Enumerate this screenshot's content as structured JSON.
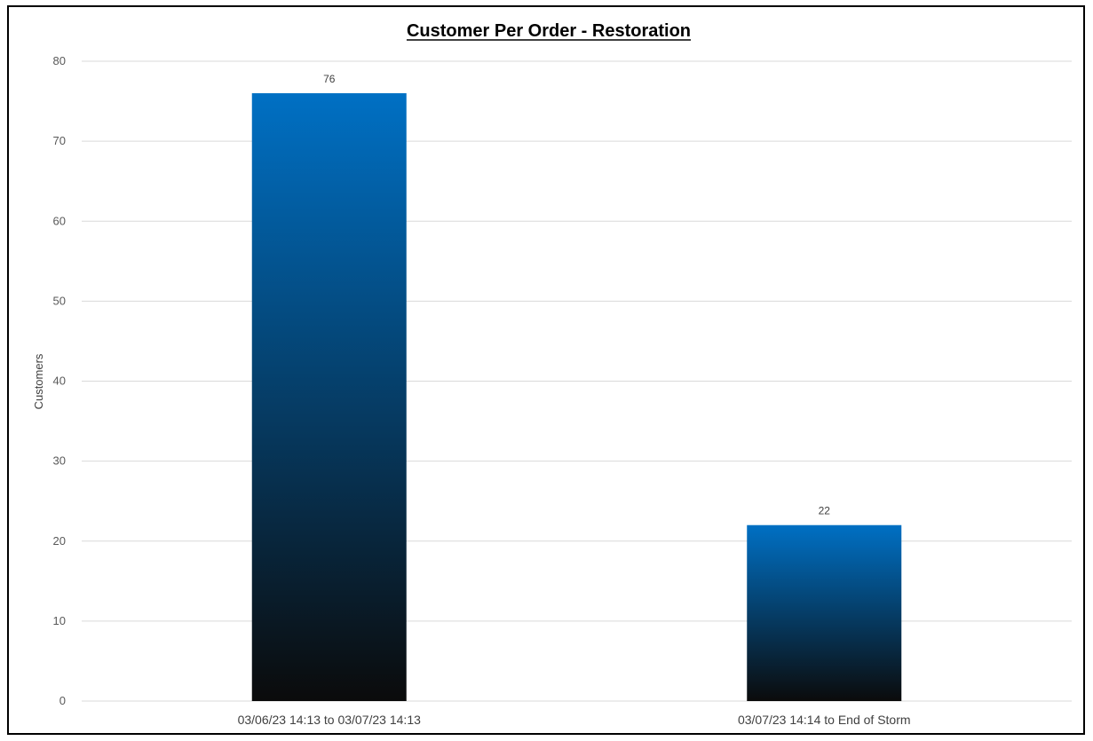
{
  "chart_data": {
    "type": "bar",
    "title": "Customer Per Order - Restoration",
    "xlabel": "",
    "ylabel": "Customers",
    "categories": [
      "03/06/23 14:13 to 03/07/23 14:13",
      "03/07/23 14:14 to End of Storm"
    ],
    "values": [
      76,
      22
    ],
    "data_labels": [
      "76",
      "22"
    ],
    "ylim": [
      0,
      80
    ],
    "yticks": [
      0,
      10,
      20,
      30,
      40,
      50,
      60,
      70,
      80
    ],
    "grid": true,
    "legend": "none"
  },
  "colors": {
    "bar_top": "#0070C4",
    "bar_bottom": "#0B0B0B",
    "gridline": "#D9D9D9",
    "frame": "#000000"
  }
}
